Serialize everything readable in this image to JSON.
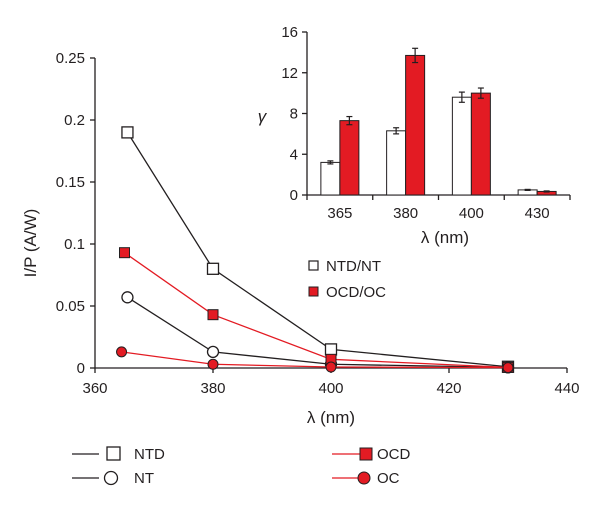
{
  "chart_data": [
    {
      "type": "line",
      "xlabel": "λ (nm)",
      "ylabel": "I/P (A/W)",
      "xlim": [
        360,
        440
      ],
      "ylim": [
        0,
        0.25
      ],
      "xticks": [
        "360",
        "380",
        "400",
        "420",
        "440"
      ],
      "yticks": [
        "0",
        "0.05",
        "0.1",
        "0.15",
        "0.2",
        "0.25"
      ],
      "legend_placement": "bottom",
      "series": [
        {
          "name": "NTD",
          "marker": "square-open",
          "color": "#231f20",
          "x": [
            365.5,
            380,
            400,
            430
          ],
          "y": [
            0.19,
            0.08,
            0.015,
            0.001
          ]
        },
        {
          "name": "NT",
          "marker": "circle-open",
          "color": "#231f20",
          "x": [
            365.5,
            380,
            400,
            430
          ],
          "y": [
            0.057,
            0.013,
            0.003,
            0.0005
          ]
        },
        {
          "name": "OCD",
          "marker": "square-filled",
          "color": "#e31b23",
          "x": [
            365,
            380,
            400,
            430
          ],
          "y": [
            0.093,
            0.043,
            0.007,
            0.0005
          ]
        },
        {
          "name": "OC",
          "marker": "circle-filled",
          "color": "#e31b23",
          "x": [
            364.5,
            380,
            400,
            430
          ],
          "y": [
            0.013,
            0.003,
            0.0008,
            0.0003
          ]
        }
      ]
    },
    {
      "type": "bar",
      "xlabel": "λ (nm)",
      "ylabel": "γ",
      "ylim": [
        0,
        16
      ],
      "categories": [
        "365",
        "380",
        "400",
        "430"
      ],
      "yticks": [
        "0",
        "4",
        "8",
        "12",
        "16"
      ],
      "legend_placement": "bottom-left",
      "series": [
        {
          "name": "NTD/NT",
          "color": "#ffffff",
          "values": [
            3.2,
            6.3,
            9.6,
            0.5
          ],
          "errors": [
            0.15,
            0.3,
            0.5,
            0.05
          ]
        },
        {
          "name": "OCD/OC",
          "color": "#e31b23",
          "values": [
            7.3,
            13.7,
            10.0,
            0.35
          ],
          "errors": [
            0.4,
            0.7,
            0.5,
            0.05
          ]
        }
      ]
    }
  ]
}
